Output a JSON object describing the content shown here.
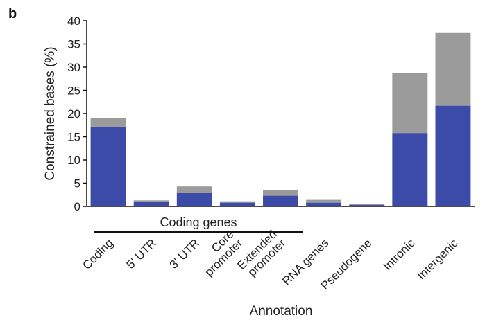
{
  "chart_data": {
    "type": "bar",
    "stacked": true,
    "panel_label": "b",
    "ylabel": "Constrained bases (%)",
    "xlabel": "Annotation",
    "ylim": [
      0,
      40
    ],
    "yticks": [
      0,
      5,
      10,
      15,
      20,
      25,
      30,
      35,
      40
    ],
    "group_label": "Coding genes",
    "categories": [
      [
        "Coding"
      ],
      [
        "5′ UTR"
      ],
      [
        "3′ UTR"
      ],
      [
        "Core",
        "promoter"
      ],
      [
        "Extended",
        "promoter"
      ],
      [
        "RNA genes"
      ],
      [
        "Pseudogene"
      ],
      [
        "Intronic"
      ],
      [
        "Intergenic"
      ]
    ],
    "series": [
      {
        "color": "#3c4aa8",
        "values": [
          17.2,
          1.0,
          2.9,
          0.8,
          2.3,
          0.8,
          0.3,
          15.8,
          21.7
        ]
      },
      {
        "color": "#9b9b9b",
        "values": [
          1.8,
          0.3,
          1.4,
          0.3,
          1.2,
          0.6,
          0.2,
          12.9,
          15.8
        ]
      }
    ],
    "grid": false,
    "legend": "none"
  }
}
